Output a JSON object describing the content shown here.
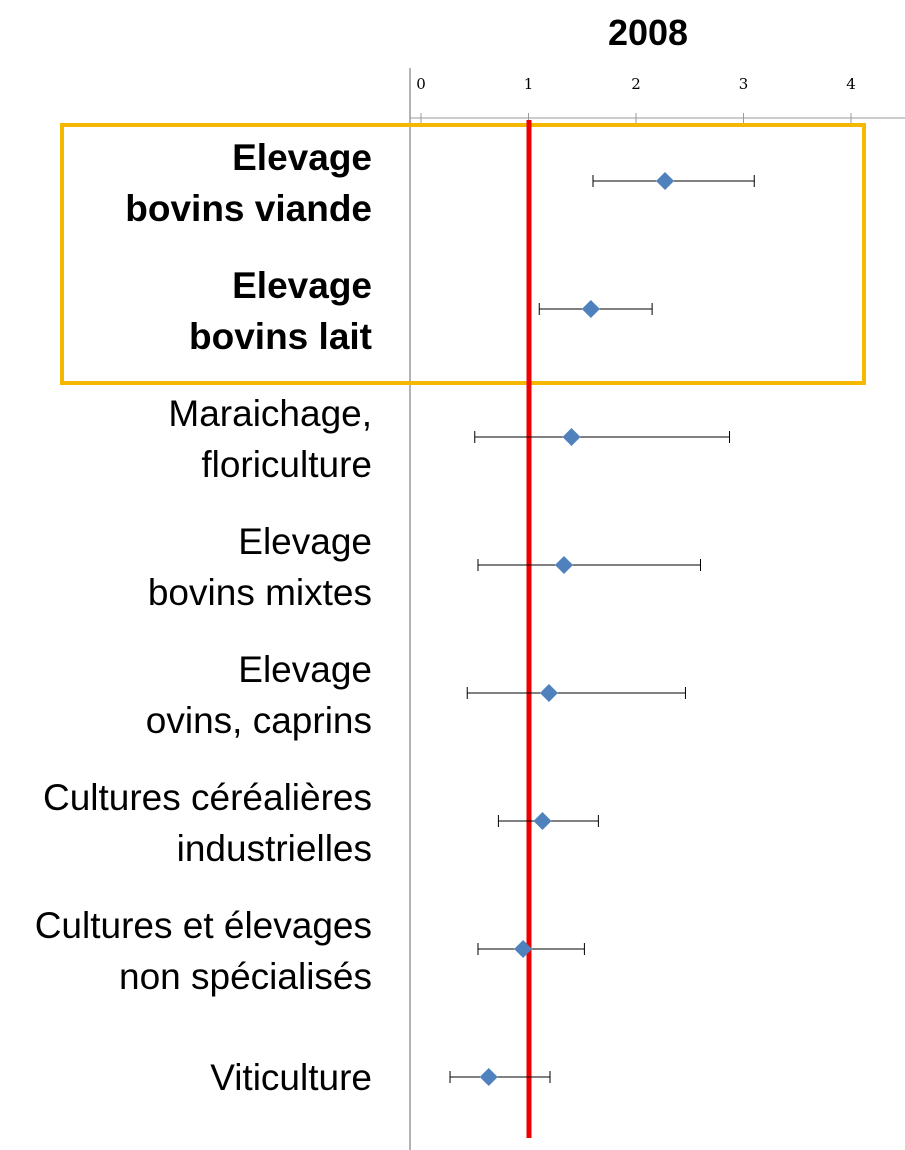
{
  "chart_data": {
    "type": "scatter",
    "title": "2008",
    "xlim": [
      0,
      4.2
    ],
    "xticks": [
      "0",
      "1",
      "2",
      "3",
      "4"
    ],
    "reference_line": {
      "x": 1,
      "color": "#ee0000"
    },
    "marker_color": "#4f81bd",
    "highlight_color": "#f5b800",
    "grid": false,
    "categories": [
      {
        "lines": [
          "Elevage",
          "bovins viande"
        ],
        "estimate": 2.27,
        "ci_low": 1.6,
        "ci_high": 3.1,
        "highlighted": true
      },
      {
        "lines": [
          "Elevage",
          "bovins lait"
        ],
        "estimate": 1.58,
        "ci_low": 1.1,
        "ci_high": 2.15,
        "highlighted": true
      },
      {
        "lines": [
          "Maraichage,",
          "floriculture"
        ],
        "estimate": 1.4,
        "ci_low": 0.5,
        "ci_high": 2.87,
        "highlighted": false
      },
      {
        "lines": [
          "Elevage",
          "bovins mixtes"
        ],
        "estimate": 1.33,
        "ci_low": 0.53,
        "ci_high": 2.6,
        "highlighted": false
      },
      {
        "lines": [
          "Elevage",
          "ovins, caprins"
        ],
        "estimate": 1.19,
        "ci_low": 0.43,
        "ci_high": 2.46,
        "highlighted": false
      },
      {
        "lines": [
          "Cultures céréalières",
          "industrielles"
        ],
        "estimate": 1.13,
        "ci_low": 0.72,
        "ci_high": 1.65,
        "highlighted": false
      },
      {
        "lines": [
          "Cultures et élevages",
          "non spécialisés"
        ],
        "estimate": 0.95,
        "ci_low": 0.53,
        "ci_high": 1.52,
        "highlighted": false
      },
      {
        "lines": [
          "Viticulture"
        ],
        "estimate": 0.63,
        "ci_low": 0.27,
        "ci_high": 1.2,
        "highlighted": false
      }
    ]
  }
}
